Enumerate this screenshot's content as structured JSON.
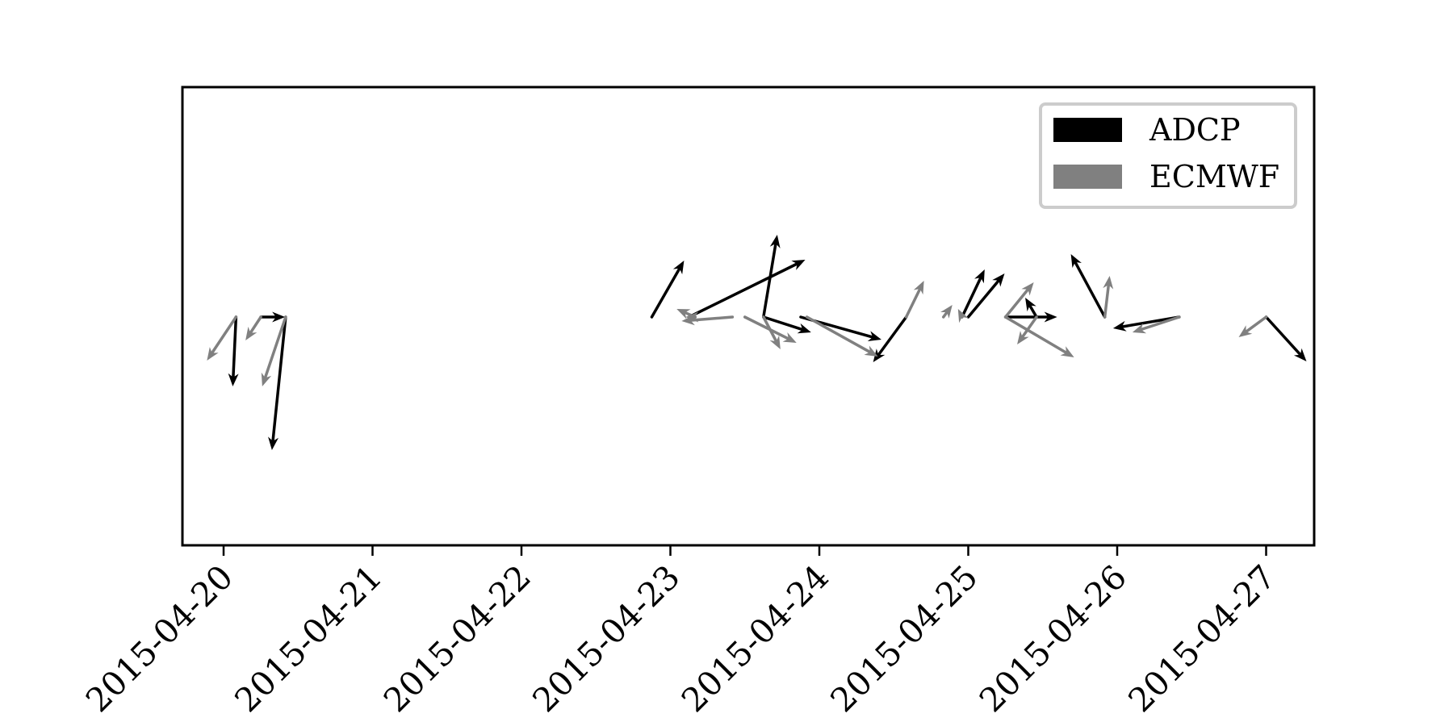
{
  "chart_data": {
    "type": "quiver",
    "x_axis": {
      "type": "date",
      "ticks": [
        "2015-04-20",
        "2015-04-21",
        "2015-04-22",
        "2015-04-23",
        "2015-04-24",
        "2015-04-25",
        "2015-04-26",
        "2015-04-27"
      ],
      "range": [
        "2015-04-19 17:00",
        "2015-04-27 09:00"
      ]
    },
    "y_axis": {
      "ticks": [],
      "visible_labels": false
    },
    "grid": false,
    "legend": {
      "placement": "top-right",
      "entries": [
        "ADCP",
        "ECMWF"
      ]
    },
    "series": [
      {
        "name": "ADCP",
        "color": "#000000",
        "vectors": [
          {
            "t": "2015-04-20 02:00",
            "u": -0.04,
            "v": -0.86
          },
          {
            "t": "2015-04-20 06:00",
            "u": 0.3,
            "v": 0.0
          },
          {
            "t": "2015-04-20 10:00",
            "u": -0.17,
            "v": -1.65
          },
          {
            "t": "2015-04-22 21:00",
            "u": 0.4,
            "v": 0.7
          },
          {
            "t": "2015-04-23 03:00",
            "u": 1.44,
            "v": 0.71
          },
          {
            "t": "2015-04-23 15:00",
            "u": 0.17,
            "v": 1.02
          },
          {
            "t": "2015-04-23 15:00",
            "u": 0.59,
            "v": -0.19
          },
          {
            "t": "2015-04-23 21:00",
            "u": 1.0,
            "v": -0.28
          },
          {
            "t": "2015-04-24 14:00",
            "u": -0.41,
            "v": -0.56
          },
          {
            "t": "2015-04-24 23:00",
            "u": 0.28,
            "v": 0.59
          },
          {
            "t": "2015-04-25 00:00",
            "u": 0.45,
            "v": 0.54
          },
          {
            "t": "2015-04-25 06:00",
            "u": 0.64,
            "v": 0.0
          },
          {
            "t": "2015-04-25 11:00",
            "u": -0.14,
            "v": 0.24
          },
          {
            "t": "2015-04-25 22:00",
            "u": -0.42,
            "v": 0.78
          },
          {
            "t": "2015-04-26 10:00",
            "u": -0.82,
            "v": -0.14
          },
          {
            "t": "2015-04-27 00:00",
            "u": 0.5,
            "v": -0.55
          }
        ]
      },
      {
        "name": "ECMWF",
        "color": "#808080",
        "vectors": [
          {
            "t": "2015-04-20 02:00",
            "u": -0.36,
            "v": -0.54
          },
          {
            "t": "2015-04-20 06:00",
            "u": -0.19,
            "v": -0.29
          },
          {
            "t": "2015-04-20 10:00",
            "u": -0.29,
            "v": -0.86
          },
          {
            "t": "2015-04-23 04:00",
            "u": -0.23,
            "v": 0.1
          },
          {
            "t": "2015-04-23 04:00",
            "u": -0.12,
            "v": 0.0
          },
          {
            "t": "2015-04-23 10:00",
            "u": -0.63,
            "v": -0.05
          },
          {
            "t": "2015-04-23 12:00",
            "u": 0.64,
            "v": -0.32
          },
          {
            "t": "2015-04-23 15:00",
            "u": 0.21,
            "v": -0.4
          },
          {
            "t": "2015-04-23 22:00",
            "u": 0.88,
            "v": -0.49
          },
          {
            "t": "2015-04-24 14:00",
            "u": 0.22,
            "v": 0.45
          },
          {
            "t": "2015-04-24 20:00",
            "u": 0.11,
            "v": 0.15
          },
          {
            "t": "2015-04-24 23:00",
            "u": -0.05,
            "v": 0.1
          },
          {
            "t": "2015-04-25 06:00",
            "u": 0.85,
            "v": -0.5
          },
          {
            "t": "2015-04-25 06:00",
            "u": 0.35,
            "v": 0.43
          },
          {
            "t": "2015-04-25 11:00",
            "u": -0.24,
            "v": -0.34
          },
          {
            "t": "2015-04-25 22:00",
            "u": 0.06,
            "v": 0.51
          },
          {
            "t": "2015-04-26 10:00",
            "u": -0.58,
            "v": -0.19
          },
          {
            "t": "2015-04-27 00:00",
            "u": -0.34,
            "v": -0.25
          }
        ]
      }
    ]
  }
}
